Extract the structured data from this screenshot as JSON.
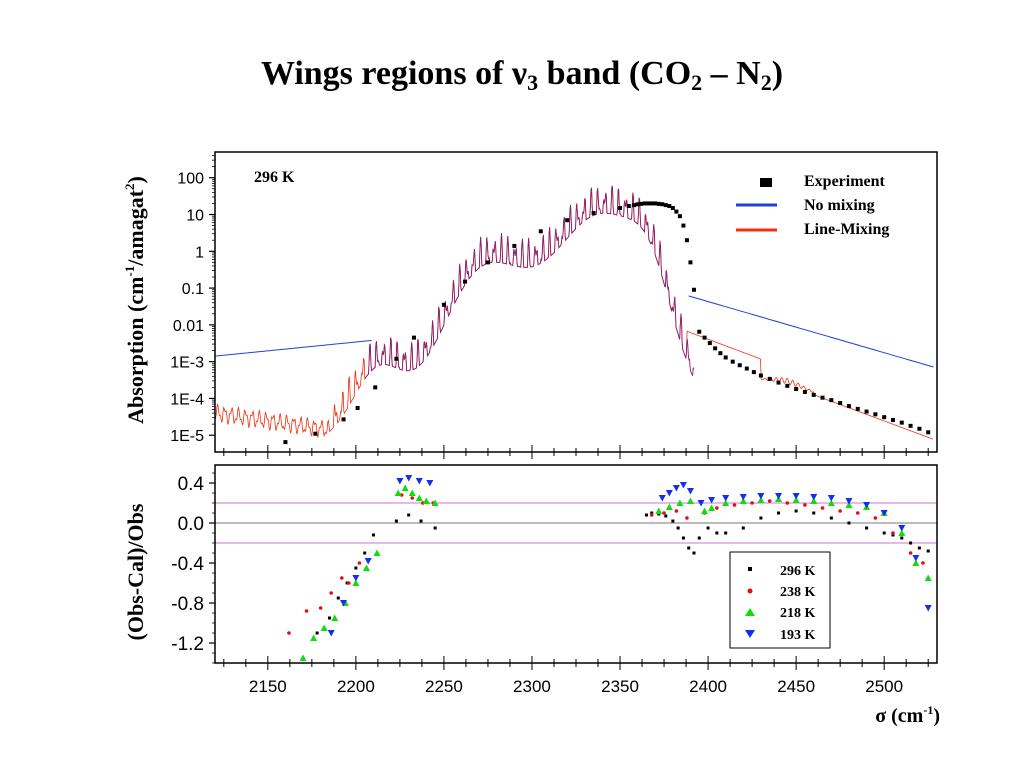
{
  "slide": {
    "title_main": "Wings regions of ",
    "title_nu": "ν",
    "title_sub3": "3",
    "title_band": " band (CO",
    "title_sub2a": "2",
    "title_dash": " – N",
    "title_sub2b": "2",
    "title_close": ")"
  },
  "chart_data": [
    {
      "type": "line",
      "panel": "top",
      "annotation": "296 K",
      "ylabel_main": "Absorption (cm",
      "ylabel_sup1": "-1",
      "ylabel_mid": "/amagat",
      "ylabel_sup2": "2",
      "ylabel_close": ")",
      "yscale": "log",
      "xlim": [
        2120,
        2530
      ],
      "ylim": [
        3.5e-06,
        500
      ],
      "yticks": [
        1e-05,
        0.0001,
        0.001,
        0.01,
        0.1,
        1,
        10,
        100
      ],
      "ytick_labels": [
        "1E-5",
        "1E-4",
        "1E-3",
        "0.01",
        "0.1",
        "1",
        "10",
        "100"
      ],
      "legend_position": "top-right",
      "colors": {
        "experiment": "#000000",
        "no_mixing": "#1f3fd6",
        "line_mixing": "#f03010",
        "overlap": "#8a2070"
      },
      "series": [
        {
          "name": "Experiment",
          "style": "markers",
          "x": [
            2160,
            2177,
            2193,
            2201,
            2211,
            2223,
            2233,
            2250,
            2262,
            2275,
            2290,
            2305,
            2320,
            2335,
            2350,
            2355,
            2358,
            2360,
            2362,
            2364,
            2366,
            2368,
            2370,
            2372,
            2374,
            2376,
            2378,
            2380,
            2382,
            2384,
            2386,
            2388,
            2390,
            2392,
            2395,
            2398,
            2401,
            2404,
            2407,
            2410,
            2414,
            2418,
            2422,
            2426,
            2430,
            2435,
            2440,
            2445,
            2450,
            2455,
            2460,
            2465,
            2470,
            2475,
            2480,
            2485,
            2490,
            2495,
            2500,
            2505,
            2510,
            2515,
            2520,
            2525
          ],
          "y": [
            6.5e-06,
            1.1e-05,
            2.7e-05,
            5.5e-05,
            0.0002,
            0.0012,
            0.0045,
            0.035,
            0.15,
            0.5,
            1.4,
            3.5,
            7,
            11,
            15,
            17,
            18,
            19,
            19.5,
            20,
            20,
            20,
            20,
            19.5,
            19,
            18,
            17,
            15,
            12,
            9,
            5,
            2,
            0.5,
            0.09,
            0.0065,
            0.0045,
            0.0032,
            0.0023,
            0.0017,
            0.0013,
            0.001,
            0.0008,
            0.00065,
            0.00052,
            0.00042,
            0.00034,
            0.00027,
            0.00022,
            0.00018,
            0.00015,
            0.000125,
            0.000105,
            9e-05,
            7.5e-05,
            6.2e-05,
            5.2e-05,
            4.4e-05,
            3.7e-05,
            3.1e-05,
            2.6e-05,
            2.2e-05,
            1.8e-05,
            1.5e-05,
            1.2e-05
          ]
        },
        {
          "name": "No mixing",
          "style": "line"
        },
        {
          "name": "Line-Mixing",
          "style": "line"
        }
      ]
    },
    {
      "type": "scatter",
      "panel": "bottom",
      "ylabel": "(Obs-Cal)/Obs",
      "xlabel_main": "σ (cm",
      "xlabel_sup": "-1",
      "xlabel_close": ")",
      "xlim": [
        2120,
        2530
      ],
      "ylim": [
        -1.4,
        0.58
      ],
      "xticks": [
        2150,
        2200,
        2250,
        2300,
        2350,
        2400,
        2450,
        2500
      ],
      "yticks": [
        0.4,
        0.0,
        -0.4,
        -0.8,
        -1.2
      ],
      "ytick_labels": [
        "0.4",
        "0.0",
        "-0.4",
        "-0.8",
        "-1.2"
      ],
      "reference_lines": [
        0.2,
        0.0,
        -0.2
      ],
      "legend_position": "bottom-right",
      "series": [
        {
          "name": "296 K",
          "marker": "square",
          "color": "#000000",
          "x": [
            2178,
            2185,
            2190,
            2195,
            2200,
            2205,
            2210,
            2223,
            2230,
            2237,
            2245,
            2365,
            2368,
            2372,
            2376,
            2380,
            2383,
            2386,
            2389,
            2392,
            2395,
            2400,
            2405,
            2410,
            2420,
            2430,
            2440,
            2450,
            2460,
            2470,
            2480,
            2490,
            2500,
            2505,
            2510,
            2515,
            2520,
            2525
          ],
          "y": [
            -1.1,
            -0.95,
            -0.75,
            -0.6,
            -0.45,
            -0.3,
            -0.12,
            0.02,
            0.08,
            0.02,
            -0.05,
            0.08,
            0.1,
            0.09,
            0.07,
            0.02,
            -0.05,
            -0.15,
            -0.25,
            -0.3,
            -0.15,
            -0.05,
            -0.1,
            -0.1,
            -0.05,
            0.05,
            0.1,
            0.12,
            0.1,
            0.05,
            0.0,
            -0.05,
            -0.1,
            -0.12,
            -0.15,
            -0.2,
            -0.25,
            -0.28
          ]
        },
        {
          "name": "238 K",
          "marker": "circle",
          "color": "#e01010",
          "x": [
            2162,
            2172,
            2180,
            2186,
            2192,
            2196,
            2202,
            2226,
            2232,
            2238,
            2244,
            2368,
            2375,
            2382,
            2388,
            2398,
            2405,
            2415,
            2425,
            2435,
            2445,
            2455,
            2465,
            2475,
            2485,
            2495,
            2505,
            2515,
            2522
          ],
          "y": [
            -1.1,
            -0.88,
            -0.85,
            -0.7,
            -0.55,
            -0.6,
            -0.4,
            0.28,
            0.25,
            0.2,
            0.2,
            0.08,
            0.1,
            0.12,
            0.05,
            0.1,
            0.15,
            0.18,
            0.2,
            0.22,
            0.2,
            0.18,
            0.15,
            0.12,
            0.1,
            0.05,
            -0.1,
            -0.3,
            -0.4
          ]
        },
        {
          "name": "218 K",
          "marker": "triangle-up",
          "color": "#10dd10",
          "x": [
            2170,
            2176,
            2182,
            2188,
            2194,
            2200,
            2206,
            2212,
            2224,
            2228,
            2232,
            2236,
            2240,
            2245,
            2372,
            2378,
            2384,
            2390,
            2398,
            2402,
            2410,
            2420,
            2430,
            2440,
            2450,
            2460,
            2470,
            2480,
            2490,
            2500,
            2510,
            2518,
            2525
          ],
          "y": [
            -1.35,
            -1.15,
            -1.05,
            -0.95,
            -0.8,
            -0.6,
            -0.45,
            -0.3,
            0.3,
            0.35,
            0.3,
            0.25,
            0.22,
            0.2,
            0.12,
            0.16,
            0.2,
            0.22,
            0.12,
            0.15,
            0.2,
            0.22,
            0.23,
            0.24,
            0.23,
            0.22,
            0.2,
            0.18,
            0.16,
            0.1,
            -0.1,
            -0.4,
            -0.55
          ]
        },
        {
          "name": "193 K",
          "marker": "triangle-down",
          "color": "#1030ee",
          "x": [
            2186,
            2193,
            2200,
            2207,
            2225,
            2230,
            2236,
            2242,
            2374,
            2378,
            2382,
            2386,
            2390,
            2396,
            2402,
            2410,
            2420,
            2430,
            2440,
            2450,
            2460,
            2470,
            2480,
            2490,
            2500,
            2510,
            2518,
            2525
          ],
          "y": [
            -1.1,
            -0.8,
            -0.55,
            -0.38,
            0.42,
            0.45,
            0.42,
            0.4,
            0.25,
            0.3,
            0.35,
            0.38,
            0.32,
            0.2,
            0.23,
            0.25,
            0.26,
            0.27,
            0.27,
            0.27,
            0.26,
            0.25,
            0.22,
            0.18,
            0.1,
            -0.05,
            -0.35,
            -0.85
          ]
        }
      ]
    }
  ]
}
